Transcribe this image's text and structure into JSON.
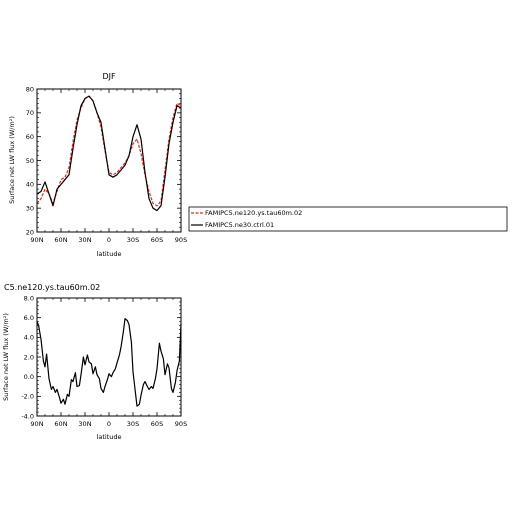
{
  "chart_data": [
    {
      "type": "line",
      "title": "DJF",
      "xlabel": "latitude",
      "ylabel": "Surface net LW flux (W/m²)",
      "x_tick_labels": [
        "90N",
        "60N",
        "30N",
        "0",
        "30S",
        "60S",
        "90S"
      ],
      "x_ticks": [
        90,
        60,
        30,
        0,
        -30,
        -60,
        -90
      ],
      "xlim": [
        90,
        -90
      ],
      "ylim": [
        20,
        80
      ],
      "y_ticks": [
        20,
        30,
        40,
        50,
        60,
        70,
        80
      ],
      "y_tick_labels": [
        "20",
        "30",
        "40",
        "50",
        "60",
        "70",
        "80"
      ],
      "legend_position": "right",
      "series": [
        {
          "name": "FAMIPC5.ne120.ys.tau60m.02",
          "color": "#e8241c",
          "x": [
            90,
            85,
            80,
            75,
            70,
            65,
            60,
            55,
            50,
            45,
            40,
            35,
            30,
            25,
            20,
            15,
            10,
            5,
            0,
            -5,
            -10,
            -15,
            -20,
            -25,
            -30,
            -35,
            -40,
            -45,
            -50,
            -55,
            -60,
            -65,
            -70,
            -75,
            -80,
            -85,
            -90
          ],
          "y": [
            32,
            34,
            38,
            36,
            32,
            37,
            42,
            43,
            47,
            58,
            67,
            72,
            76,
            77,
            75,
            70,
            64,
            54,
            45,
            44,
            45,
            47,
            49,
            52,
            57,
            59,
            53,
            44,
            37,
            32,
            31,
            33,
            46,
            59,
            68,
            74,
            73
          ]
        },
        {
          "name": "FAMIPC5.ne30.ctrl.01",
          "color": "#000000",
          "x": [
            90,
            85,
            80,
            75,
            70,
            65,
            60,
            55,
            50,
            45,
            40,
            35,
            30,
            25,
            20,
            15,
            10,
            5,
            0,
            -5,
            -10,
            -15,
            -20,
            -25,
            -30,
            -35,
            -40,
            -45,
            -50,
            -55,
            -60,
            -65,
            -70,
            -75,
            -80,
            -85,
            -90
          ],
          "y": [
            36,
            37,
            41,
            36,
            31,
            38,
            40,
            42,
            44,
            55,
            65,
            73,
            76,
            77,
            75,
            70,
            66,
            55,
            44,
            43,
            44,
            46,
            48,
            52,
            60,
            65,
            59,
            45,
            34,
            30,
            29,
            31,
            43,
            57,
            66,
            73,
            72
          ]
        }
      ]
    },
    {
      "type": "line",
      "title": "C5.ne120.ys.tau60m.02",
      "xlabel": "latitude",
      "ylabel": "Surface net LW flux (W/m²)",
      "x_tick_labels": [
        "90N",
        "60N",
        "30N",
        "0",
        "30S",
        "60S",
        "90S"
      ],
      "x_ticks": [
        90,
        60,
        30,
        0,
        -30,
        -60,
        -90
      ],
      "xlim": [
        90,
        -90
      ],
      "ylim": [
        -4,
        8
      ],
      "y_ticks": [
        -4,
        -2,
        0,
        2,
        4,
        6,
        8
      ],
      "y_tick_labels": [
        "-4.0",
        "-2.0",
        "0.0",
        "2.0",
        "4.0",
        "6.0",
        "8.0"
      ],
      "series": [
        {
          "color": "#000000",
          "x": [
            90,
            88,
            85,
            82,
            80,
            78,
            75,
            72,
            70,
            67,
            65,
            62,
            60,
            57,
            55,
            52,
            50,
            47,
            45,
            42,
            40,
            37,
            35,
            32,
            30,
            27,
            25,
            22,
            20,
            17,
            15,
            12,
            10,
            7,
            5,
            2,
            0,
            -3,
            -5,
            -8,
            -10,
            -13,
            -15,
            -18,
            -20,
            -23,
            -25,
            -28,
            -30,
            -33,
            -35,
            -38,
            -40,
            -43,
            -45,
            -48,
            -50,
            -53,
            -55,
            -58,
            -60,
            -63,
            -65,
            -68,
            -70,
            -73,
            -75,
            -78,
            -80,
            -83,
            -85,
            -88,
            -90
          ],
          "y": [
            5.6,
            5.2,
            3.8,
            1.6,
            1.0,
            2.3,
            -0.2,
            -1.3,
            -1.0,
            -1.6,
            -1.3,
            -2.1,
            -2.7,
            -2.3,
            -2.8,
            -1.8,
            -2.0,
            -0.3,
            -0.5,
            0.4,
            -1.0,
            -0.9,
            0.2,
            2.0,
            1.2,
            2.2,
            1.5,
            1.3,
            0.3,
            1.0,
            0.2,
            -0.2,
            -1.2,
            -1.6,
            -1.0,
            -0.3,
            0.3,
            0.0,
            0.4,
            0.8,
            1.4,
            2.2,
            3.0,
            4.6,
            5.9,
            5.7,
            5.3,
            3.5,
            0.5,
            -1.6,
            -3.0,
            -2.8,
            -1.9,
            -0.8,
            -0.5,
            -1.0,
            -1.3,
            -1.0,
            -1.2,
            -0.2,
            0.8,
            3.4,
            2.6,
            1.8,
            0.2,
            1.3,
            0.9,
            -1.2,
            -1.6,
            -0.6,
            0.6,
            1.6,
            5.4
          ]
        }
      ]
    }
  ]
}
